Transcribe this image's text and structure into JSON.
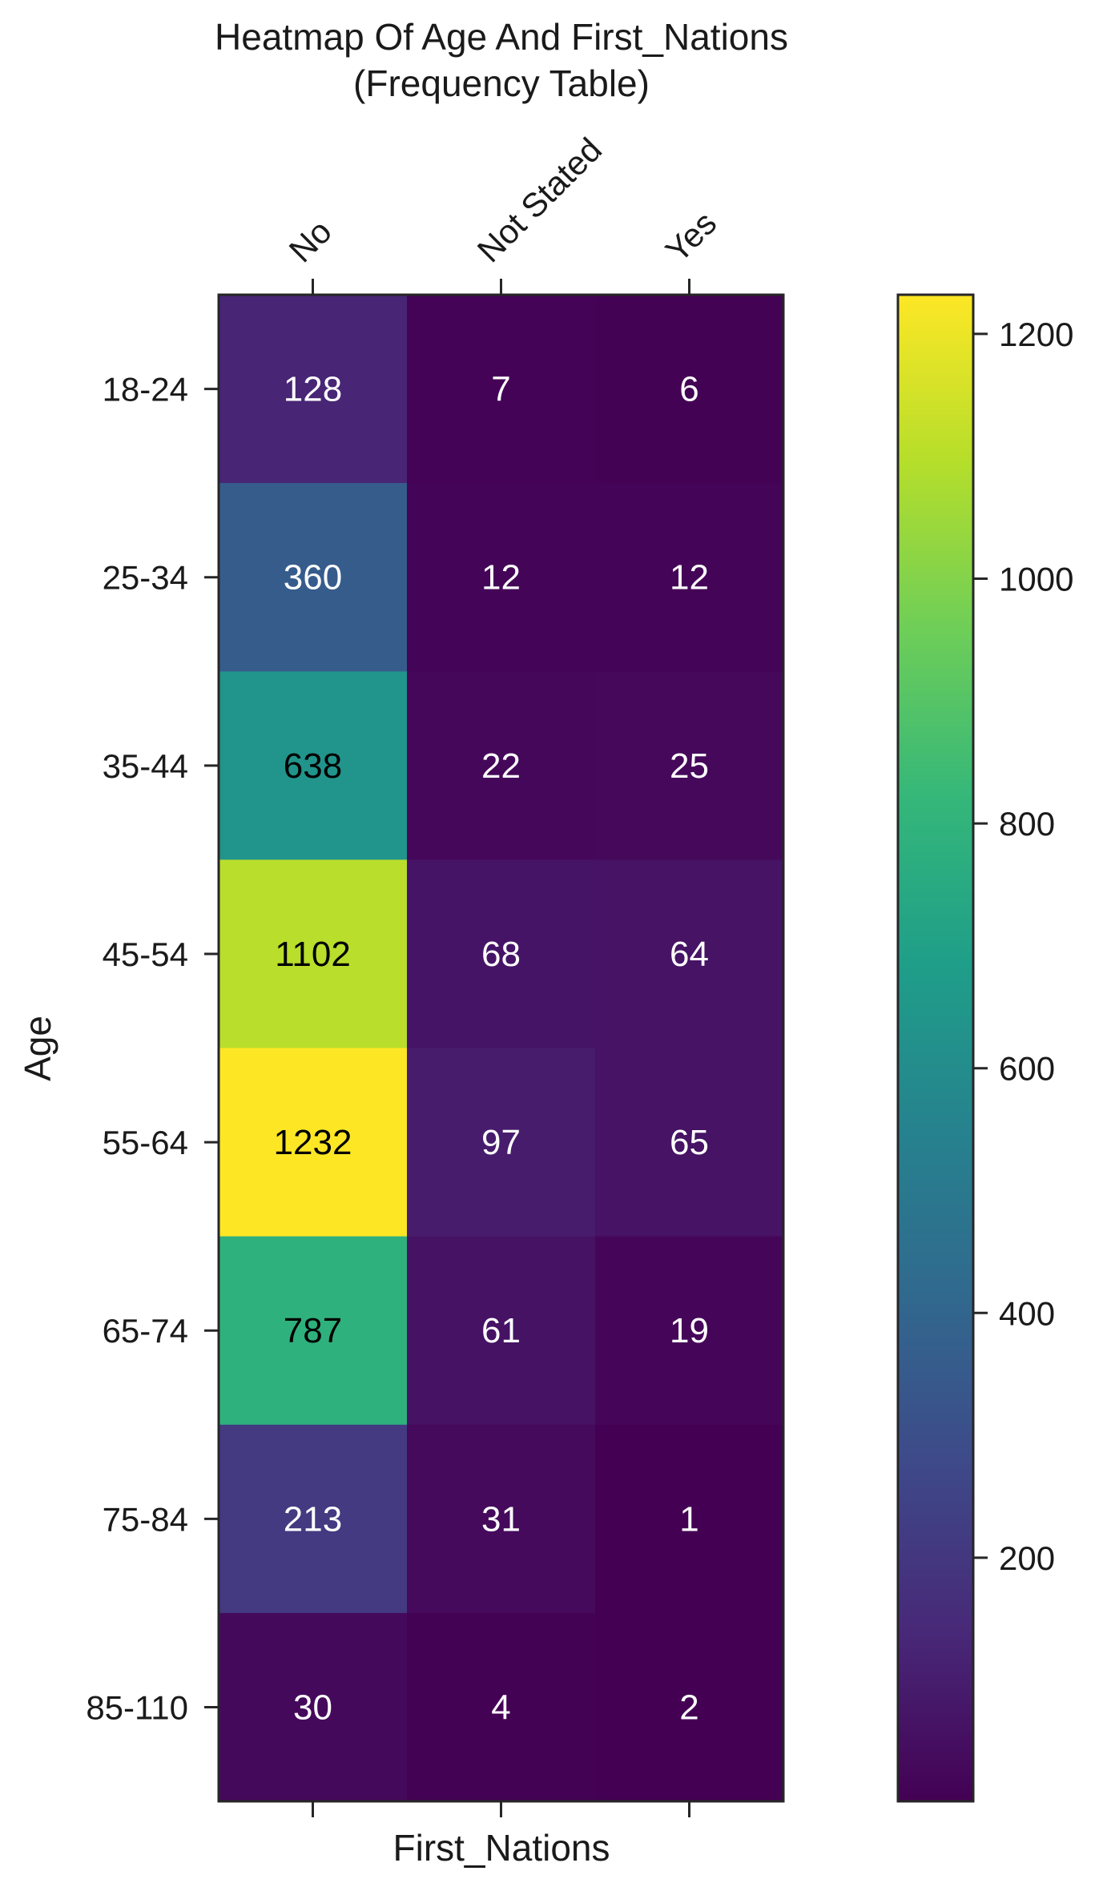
{
  "chart_data": {
    "type": "heatmap",
    "title_line1": "Heatmap Of Age And First_Nations",
    "title_line2": "(Frequency Table)",
    "xlabel": "First_Nations",
    "ylabel": "Age",
    "x_categories": [
      "No",
      "Not Stated",
      "Yes"
    ],
    "y_categories": [
      "18-24",
      "25-34",
      "35-44",
      "45-54",
      "55-64",
      "65-74",
      "75-84",
      "85-110"
    ],
    "values": [
      [
        128,
        7,
        6
      ],
      [
        360,
        12,
        12
      ],
      [
        638,
        22,
        25
      ],
      [
        1102,
        68,
        64
      ],
      [
        1232,
        97,
        65
      ],
      [
        787,
        61,
        19
      ],
      [
        213,
        31,
        1
      ],
      [
        30,
        4,
        2
      ]
    ],
    "colorscale": "viridis",
    "vmin": 1,
    "vmax": 1232,
    "colorbar_ticks": [
      200,
      400,
      600,
      800,
      1000,
      1200
    ],
    "label_text_colors": {
      "light_cell": "#000000",
      "dark_cell": "#ffffff"
    },
    "grid": false
  }
}
